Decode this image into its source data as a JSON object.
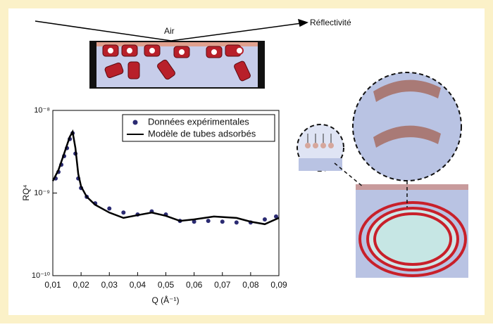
{
  "chart_data": {
    "type": "scatter",
    "annotations": [
      "Air",
      "Réflectivité"
    ],
    "xlabel": "Q (Å⁻¹)",
    "ylabel": "RQ⁴",
    "xlim": [
      0.01,
      0.09
    ],
    "xticks": [
      {
        "value": 0.01,
        "label": "0,01"
      },
      {
        "value": 0.02,
        "label": "0,02"
      },
      {
        "value": 0.03,
        "label": "0,03"
      },
      {
        "value": 0.04,
        "label": "0,04"
      },
      {
        "value": 0.05,
        "label": "0,05"
      },
      {
        "value": 0.06,
        "label": "0,06"
      },
      {
        "value": 0.07,
        "label": "0,07"
      },
      {
        "value": 0.08,
        "label": "0,08"
      },
      {
        "value": 0.09,
        "label": "0,09"
      }
    ],
    "ylim": [
      1e-10,
      1e-08
    ],
    "yticks": [
      {
        "value": 1e-10,
        "label": "10⁻¹⁰"
      },
      {
        "value": 1e-09,
        "label": "10⁻⁹"
      },
      {
        "value": 1e-08,
        "label": "10⁻⁸"
      }
    ],
    "ylog": true,
    "legend": "top-right",
    "series": [
      {
        "name": "Données expérimentales",
        "type": "scatter",
        "color": "#2b2b72",
        "x": [
          0.011,
          0.012,
          0.013,
          0.014,
          0.015,
          0.016,
          0.017,
          0.018,
          0.019,
          0.02,
          0.022,
          0.025,
          0.03,
          0.035,
          0.04,
          0.045,
          0.05,
          0.055,
          0.06,
          0.065,
          0.07,
          0.075,
          0.08,
          0.085,
          0.089
        ],
        "values": [
          1.5e-09,
          1.8e-09,
          2.2e-09,
          2.8e-09,
          3.5e-09,
          4.5e-09,
          5.3e-09,
          3e-09,
          1.5e-09,
          1.15e-09,
          9e-10,
          7.5e-10,
          6.5e-10,
          5.8e-10,
          5.5e-10,
          6e-10,
          5.5e-10,
          4.6e-10,
          4.5e-10,
          4.6e-10,
          4.5e-10,
          4.4e-10,
          4.4e-10,
          4.8e-10,
          5.2e-10
        ]
      },
      {
        "name": "Modèle de tubes adsorbés",
        "type": "line",
        "color": "#000000",
        "x": [
          0.01,
          0.012,
          0.014,
          0.016,
          0.017,
          0.018,
          0.019,
          0.02,
          0.022,
          0.025,
          0.03,
          0.035,
          0.04,
          0.045,
          0.05,
          0.055,
          0.06,
          0.067,
          0.075,
          0.08,
          0.085,
          0.09
        ],
        "values": [
          1.4e-09,
          1.9e-09,
          3e-09,
          4.8e-09,
          5.5e-09,
          3.5e-09,
          1.7e-09,
          1.2e-09,
          9e-10,
          7.2e-10,
          5.8e-10,
          5e-10,
          5.4e-10,
          5.8e-10,
          5.3e-10,
          4.6e-10,
          4.8e-10,
          5.2e-10,
          5e-10,
          4.5e-10,
          4.2e-10,
          5e-10
        ]
      }
    ]
  }
}
